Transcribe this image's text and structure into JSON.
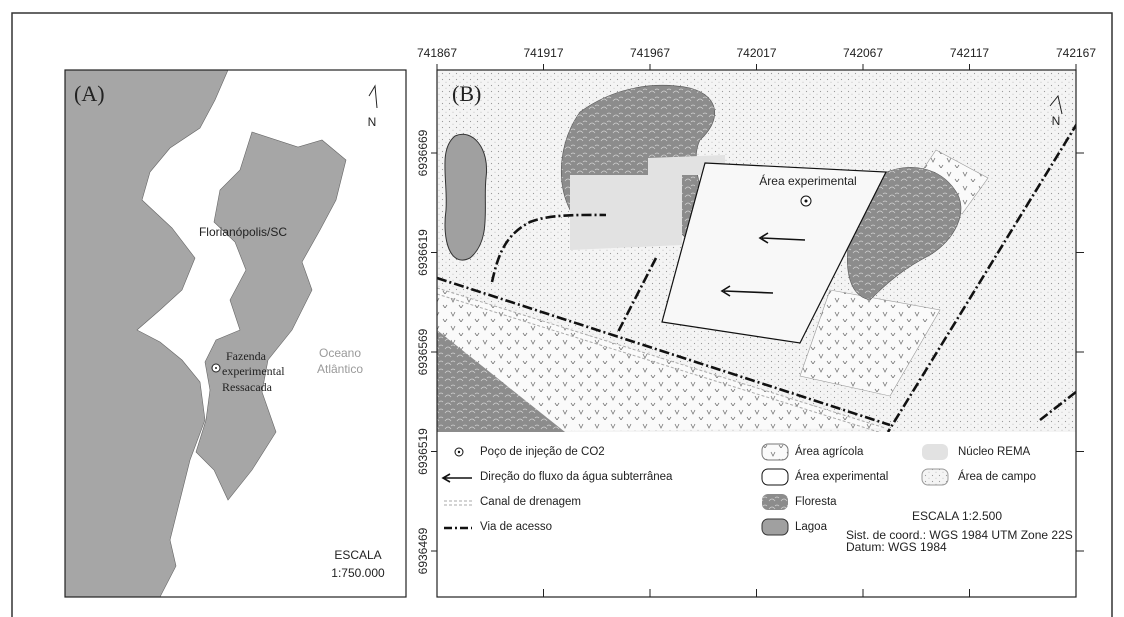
{
  "panel_a": {
    "label": "(A)",
    "north": "N",
    "city": "Florianópolis/SC",
    "site": [
      "Fazenda",
      "experimental",
      "Ressacada"
    ],
    "ocean": [
      "Oceano",
      "Atlântico"
    ],
    "scale": [
      "ESCALA",
      "1:750.000"
    ]
  },
  "panel_b": {
    "label": "(B)",
    "north": "N",
    "site_label": "Área experimental",
    "eastings": [
      741867,
      741917,
      741967,
      742017,
      742067,
      742117,
      742167
    ],
    "northings": [
      6936669,
      6936619,
      6936569,
      6936519,
      6936469
    ],
    "legend": [
      "Poço de injeção de CO2",
      "Direção do fluxo da água subterrânea",
      "Canal de drenagem",
      "Via de acesso",
      "Área agrícola",
      "Área experimental",
      "Floresta",
      "Lagoa",
      "Núcleo REMA",
      "Área de campo"
    ],
    "scale": "ESCALA 1:2.500",
    "crs": "Sist. de coord.: WGS 1984 UTM Zone 22S",
    "datum": "Datum: WGS 1984"
  }
}
